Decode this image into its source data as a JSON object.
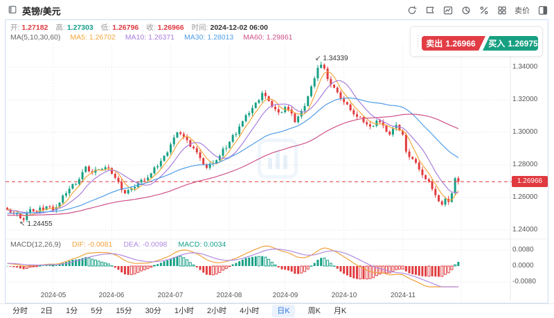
{
  "window": {
    "title": "英镑/美元"
  },
  "toolbar": {
    "icons": [
      "refresh-icon",
      "flag-icon",
      "chart-style-icon",
      "pie-chart-icon",
      "percent-icon",
      "grid-layout-icon",
      "sell-price-label",
      "panel-toggle-icon"
    ],
    "sell_price_label": "卖价"
  },
  "quote": {
    "open_label": "开:",
    "open": "1.27182",
    "high_label": "高:",
    "high": "1.27303",
    "low_label": "低:",
    "low": "1.26796",
    "close_label": "收:",
    "close": "1.26966",
    "time_label": "时间:",
    "time": "2024-12-02 06:00"
  },
  "ma": {
    "label": "MA(5,10,30,60)",
    "items": [
      {
        "label": "MA5:",
        "value": "1.26702",
        "color": "#f5a73b"
      },
      {
        "label": "MA10:",
        "value": "1.26371",
        "color": "#a87ddd"
      },
      {
        "label": "MA30:",
        "value": "1.28013",
        "color": "#4f9de8"
      },
      {
        "label": "MA60:",
        "value": "1.29861",
        "color": "#cf5088"
      }
    ]
  },
  "trade": {
    "sell_label": "卖出",
    "sell_price": "1.26966",
    "buy_label": "买入",
    "buy_price": "1.26975"
  },
  "price_axis": {
    "ticks": [
      "1.34000",
      "1.32000",
      "1.30000",
      "1.28000",
      "1.26000",
      "1.24000"
    ],
    "current": "1.26966"
  },
  "annotations": {
    "high": "1.34339",
    "low": "1.24455"
  },
  "macd_legend": {
    "title": "MACD(12,26,9)",
    "dif_label": "DIF:",
    "dif": "-0.0081",
    "dea_label": "DEA:",
    "dea": "-0.0098",
    "macd_label": "MACD:",
    "macd": "0.0034",
    "axis": [
      "0.0080",
      "0.0000",
      "-0.0080"
    ]
  },
  "x_axis": {
    "labels": [
      "2024-05",
      "2024-06",
      "2024-07",
      "2024-08",
      "2024-09",
      "2024-10",
      "2024-11"
    ]
  },
  "timeframes": {
    "items": [
      "分时",
      "2日",
      "1分",
      "5分",
      "15分",
      "30分",
      "1小时",
      "2小时",
      "4小时",
      "日K",
      "周K",
      "月K"
    ],
    "selected": "日K"
  },
  "colors": {
    "up": "#16a085",
    "down": "#e13b3f",
    "current_line": "#e0393f",
    "ma5": "#f5a73b",
    "ma10": "#a87ddd",
    "ma30": "#4f9de8",
    "ma60": "#cf5088",
    "dif_line": "#f0a13a",
    "dea_line": "#b08ae0",
    "grid": "#d9d9d9"
  },
  "chart_data": {
    "type": "candlestick",
    "symbol": "GBP/USD",
    "interval": "daily",
    "price_axis_ticks": [
      1.34,
      1.32,
      1.3,
      1.28,
      1.26,
      1.24
    ],
    "macd_axis_ticks": [
      0.008,
      0,
      -0.008
    ],
    "current_price": 1.26966,
    "marked_high": {
      "index": 96,
      "value": 1.34339
    },
    "marked_low": {
      "index": 5,
      "value": 1.24455
    },
    "last_candle": {
      "open": 1.27182,
      "high": 1.27303,
      "low": 1.26796,
      "close": 1.26966,
      "time": "2024-12-02 06:00"
    },
    "candle_count": 139,
    "months": [
      {
        "label": "2024-05",
        "index": 14
      },
      {
        "label": "2024-06",
        "index": 32
      },
      {
        "label": "2024-07",
        "index": 50
      },
      {
        "label": "2024-08",
        "index": 68
      },
      {
        "label": "2024-09",
        "index": 85
      },
      {
        "label": "2024-10",
        "index": 103
      },
      {
        "label": "2024-11",
        "index": 121
      }
    ],
    "close_anchors": [
      [
        0,
        1.2525
      ],
      [
        2,
        1.25
      ],
      [
        4,
        1.2472
      ],
      [
        5,
        1.2462
      ],
      [
        7,
        1.2528
      ],
      [
        9,
        1.2512
      ],
      [
        12,
        1.2545
      ],
      [
        14,
        1.2522
      ],
      [
        16,
        1.2568
      ],
      [
        18,
        1.2625
      ],
      [
        20,
        1.2682
      ],
      [
        22,
        1.2712
      ],
      [
        24,
        1.279
      ],
      [
        26,
        1.2752
      ],
      [
        28,
        1.2772
      ],
      [
        30,
        1.2786
      ],
      [
        32,
        1.2745
      ],
      [
        34,
        1.2696
      ],
      [
        36,
        1.2625
      ],
      [
        38,
        1.2656
      ],
      [
        40,
        1.2692
      ],
      [
        42,
        1.2706
      ],
      [
        44,
        1.2748
      ],
      [
        46,
        1.2792
      ],
      [
        48,
        1.2856
      ],
      [
        50,
        1.2926
      ],
      [
        52,
        1.3
      ],
      [
        53,
        1.299
      ],
      [
        55,
        1.2952
      ],
      [
        57,
        1.2902
      ],
      [
        59,
        1.2842
      ],
      [
        61,
        1.2782
      ],
      [
        63,
        1.2812
      ],
      [
        65,
        1.2856
      ],
      [
        68,
        1.2942
      ],
      [
        71,
        1.3036
      ],
      [
        74,
        1.3118
      ],
      [
        76,
        1.3182
      ],
      [
        78,
        1.3242
      ],
      [
        80,
        1.3192
      ],
      [
        82,
        1.3142
      ],
      [
        83,
        1.3122
      ],
      [
        85,
        1.3156
      ],
      [
        86,
        1.314
      ],
      [
        88,
        1.3062
      ],
      [
        90,
        1.3132
      ],
      [
        92,
        1.3222
      ],
      [
        94,
        1.3332
      ],
      [
        95,
        1.3396
      ],
      [
        96,
        1.3415
      ],
      [
        97,
        1.3392
      ],
      [
        99,
        1.3292
      ],
      [
        101,
        1.3246
      ],
      [
        103,
        1.3186
      ],
      [
        105,
        1.3136
      ],
      [
        107,
        1.3096
      ],
      [
        109,
        1.3062
      ],
      [
        111,
        1.3036
      ],
      [
        113,
        1.3072
      ],
      [
        115,
        1.3042
      ],
      [
        117,
        1.2986
      ],
      [
        119,
        1.3046
      ],
      [
        121,
        1.2986
      ],
      [
        122,
        1.2882
      ],
      [
        124,
        1.2836
      ],
      [
        126,
        1.2772
      ],
      [
        128,
        1.2712
      ],
      [
        130,
        1.2652
      ],
      [
        132,
        1.2576
      ],
      [
        133,
        1.2556
      ],
      [
        134,
        1.2592
      ],
      [
        135,
        1.2572
      ],
      [
        136,
        1.2626
      ],
      [
        137,
        1.2718
      ],
      [
        138,
        1.26966
      ]
    ],
    "ma_settings": {
      "periods": [
        5,
        10,
        30,
        60
      ]
    },
    "macd_settings": {
      "fast": 12,
      "slow": 26,
      "signal": 9
    }
  }
}
